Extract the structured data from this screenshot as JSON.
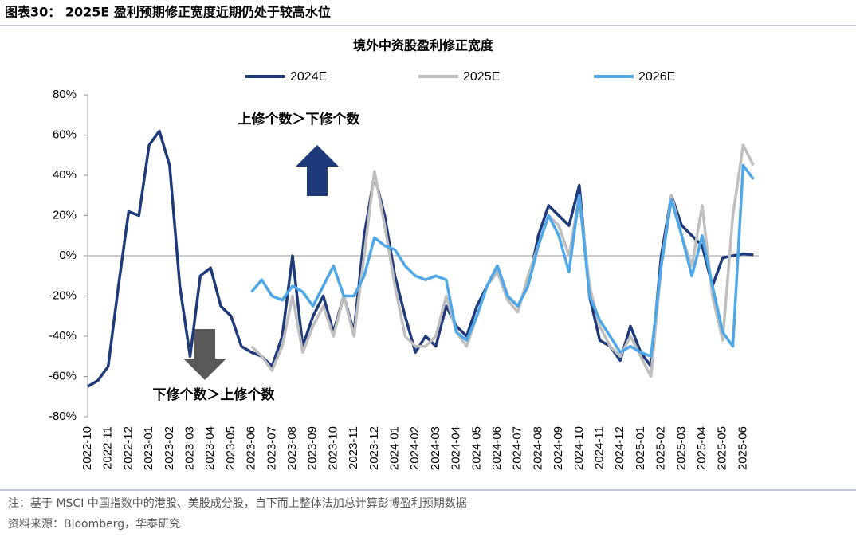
{
  "header": "图表30： 2025E 盈利预期修正宽度近期仍处于较高水位",
  "chart_data": {
    "type": "line",
    "title": "境外中资股盈利修正宽度",
    "annotations": [
      "上修个数＞下修个数",
      "下修个数＞上修个数"
    ],
    "categories": [
      "2022-10",
      null,
      "2022-11",
      null,
      "2022-12",
      null,
      "2023-01",
      null,
      "2023-02",
      null,
      "2023-03",
      null,
      "2023-04",
      null,
      "2023-05",
      null,
      "2023-06",
      null,
      "2023-07",
      null,
      "2023-08",
      null,
      "2023-09",
      null,
      "2023-10",
      null,
      "2023-11",
      null,
      "2023-12",
      null,
      "2024-01",
      null,
      "2024-02",
      null,
      "2024-03",
      null,
      "2024-04",
      null,
      "2024-05",
      null,
      "2024-06",
      null,
      "2024-07",
      null,
      "2024-08",
      null,
      "2024-09",
      null,
      "2024-10",
      null,
      "2024-11",
      null,
      "2024-12",
      null,
      "2025-01",
      null,
      "2025-02",
      null,
      "2025-03",
      null,
      "2025-04",
      null,
      "2025-05",
      null,
      "2025-06",
      null
    ],
    "series": [
      {
        "name": "2024E",
        "color": "#1f3a7a",
        "values": [
          -65,
          -62,
          -55,
          -15,
          22,
          20,
          55,
          62,
          45,
          -15,
          -50,
          -10,
          -6,
          -25,
          -30,
          -45,
          -48,
          -50,
          -55,
          -40,
          0,
          -45,
          -30,
          -20,
          -38,
          -20,
          -38,
          10,
          40,
          20,
          -10,
          -30,
          -48,
          -40,
          -45,
          -25,
          -35,
          -40,
          -25,
          -15,
          -5,
          -20,
          -25,
          -15,
          10,
          25,
          20,
          15,
          35,
          -20,
          -42,
          -45,
          -52,
          -35,
          -48,
          -55,
          0,
          30,
          15,
          10,
          5,
          -15,
          -1,
          0,
          1,
          0.5
        ]
      },
      {
        "name": "2025E",
        "color": "#bfbfbf",
        "values": [
          null,
          null,
          null,
          null,
          null,
          null,
          null,
          null,
          null,
          null,
          null,
          null,
          null,
          null,
          null,
          null,
          -45,
          -50,
          -57,
          -45,
          -20,
          -48,
          -35,
          -25,
          -40,
          -20,
          -40,
          0,
          42,
          15,
          -15,
          -40,
          -45,
          -45,
          -40,
          -20,
          -38,
          -45,
          -30,
          -15,
          -8,
          -22,
          -28,
          -10,
          5,
          20,
          15,
          0,
          30,
          -15,
          -35,
          -45,
          -50,
          -40,
          -50,
          -60,
          -5,
          30,
          10,
          -5,
          25,
          -20,
          -42,
          20,
          55,
          45
        ]
      },
      {
        "name": "2026E",
        "color": "#4ea8e8",
        "values": [
          null,
          null,
          null,
          null,
          null,
          null,
          null,
          null,
          null,
          null,
          null,
          null,
          null,
          null,
          null,
          null,
          -18,
          -12,
          -20,
          -22,
          -15,
          -18,
          -25,
          -15,
          -5,
          -20,
          -20,
          -10,
          9,
          5,
          3,
          -5,
          -10,
          -12,
          -10,
          -12,
          -38,
          -42,
          -30,
          -15,
          -5,
          -20,
          -25,
          -15,
          5,
          20,
          10,
          -8,
          30,
          -20,
          -32,
          -40,
          -48,
          -45,
          -48,
          -50,
          -5,
          28,
          10,
          -10,
          10,
          -15,
          -38,
          -45,
          45,
          38
        ]
      }
    ],
    "ylim": [
      -80,
      80
    ],
    "yticks": [
      {
        "value": -80,
        "label": "-80%"
      },
      {
        "value": -60,
        "label": "-60%"
      },
      {
        "value": -40,
        "label": "-40%"
      },
      {
        "value": -20,
        "label": "-20%"
      },
      {
        "value": 0,
        "label": "0%"
      },
      {
        "value": 20,
        "label": "20%"
      },
      {
        "value": 40,
        "label": "40%"
      },
      {
        "value": 60,
        "label": "60%"
      },
      {
        "value": 80,
        "label": "80%"
      }
    ],
    "grid": false
  },
  "footnotes": [
    "注：基于 MSCI 中国指数中的港股、美股成分股，自下而上整体法加总计算彭博盈利预期数据",
    "资料来源：Bloomberg，华泰研究"
  ]
}
